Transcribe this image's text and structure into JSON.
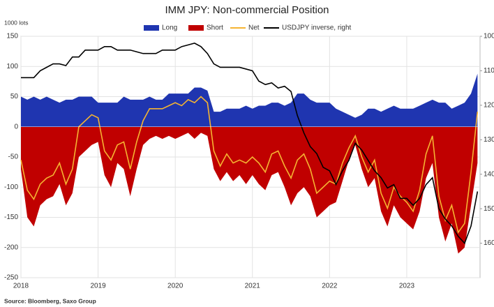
{
  "chart_data": {
    "type": "area",
    "title": "IMM JPY: Non-commercial Position",
    "y_label": "1000 lots",
    "source": "Source: Bloomberg, Saxo Group",
    "x": [
      2018,
      2018.083,
      2018.167,
      2018.25,
      2018.333,
      2018.417,
      2018.5,
      2018.583,
      2018.667,
      2018.75,
      2018.833,
      2018.917,
      2019,
      2019.083,
      2019.167,
      2019.25,
      2019.333,
      2019.417,
      2019.5,
      2019.583,
      2019.667,
      2019.75,
      2019.833,
      2019.917,
      2020,
      2020.083,
      2020.167,
      2020.25,
      2020.333,
      2020.417,
      2020.5,
      2020.583,
      2020.667,
      2020.75,
      2020.833,
      2020.917,
      2021,
      2021.083,
      2021.167,
      2021.25,
      2021.333,
      2021.417,
      2021.5,
      2021.583,
      2021.667,
      2021.75,
      2021.833,
      2021.917,
      2022,
      2022.083,
      2022.167,
      2022.25,
      2022.333,
      2022.417,
      2022.5,
      2022.583,
      2022.667,
      2022.75,
      2022.833,
      2022.917,
      2023,
      2023.083,
      2023.167,
      2023.25,
      2023.333,
      2023.417,
      2023.5,
      2023.583,
      2023.667,
      2023.75,
      2023.833,
      2023.917
    ],
    "xlim": [
      2018,
      2023.95
    ],
    "xticks": [
      2018,
      2019,
      2020,
      2021,
      2022,
      2023
    ],
    "ylim": [
      -250,
      150
    ],
    "yticks": [
      -250,
      -200,
      -150,
      -100,
      -50,
      0,
      50,
      100,
      150
    ],
    "y2lim": [
      100,
      170
    ],
    "y2ticks": [
      100,
      110,
      120,
      130,
      140,
      150,
      160
    ],
    "y2_inverted": true,
    "grid": true,
    "series": [
      {
        "name": "Long",
        "kind": "area",
        "color": "#1f35b0",
        "values": [
          50,
          45,
          50,
          45,
          50,
          45,
          40,
          45,
          45,
          50,
          50,
          50,
          40,
          40,
          40,
          40,
          50,
          45,
          45,
          45,
          50,
          45,
          45,
          55,
          55,
          55,
          55,
          65,
          65,
          60,
          25,
          25,
          30,
          30,
          30,
          35,
          30,
          35,
          35,
          40,
          40,
          35,
          40,
          55,
          55,
          45,
          40,
          40,
          40,
          30,
          25,
          20,
          15,
          20,
          30,
          30,
          25,
          30,
          35,
          30,
          30,
          30,
          35,
          40,
          45,
          40,
          40,
          30,
          35,
          40,
          55,
          88
        ]
      },
      {
        "name": "Short",
        "kind": "area",
        "color": "#c00000",
        "values": [
          -70,
          -150,
          -165,
          -130,
          -120,
          -115,
          -95,
          -130,
          -110,
          -50,
          -40,
          -30,
          -25,
          -80,
          -100,
          -60,
          -70,
          -115,
          -70,
          -30,
          -20,
          -15,
          -20,
          -15,
          -20,
          -15,
          -10,
          -20,
          -10,
          -15,
          -70,
          -90,
          -75,
          -90,
          -80,
          -95,
          -80,
          -95,
          -105,
          -80,
          -75,
          -100,
          -130,
          -110,
          -100,
          -115,
          -150,
          -140,
          -130,
          -125,
          -90,
          -55,
          -30,
          -70,
          -100,
          -85,
          -140,
          -165,
          -130,
          -150,
          -160,
          -170,
          -140,
          -85,
          -60,
          -150,
          -190,
          -160,
          -210,
          -200,
          -130,
          -60
        ]
      },
      {
        "name": "Net",
        "kind": "line",
        "color": "#f5b432",
        "values": [
          -55,
          -105,
          -120,
          -95,
          -85,
          -80,
          -60,
          -95,
          -70,
          0,
          10,
          20,
          15,
          -40,
          -55,
          -30,
          -25,
          -70,
          -25,
          10,
          30,
          30,
          30,
          35,
          40,
          35,
          45,
          40,
          50,
          40,
          -40,
          -65,
          -45,
          -60,
          -55,
          -60,
          -50,
          -60,
          -75,
          -45,
          -40,
          -65,
          -85,
          -55,
          -45,
          -70,
          -110,
          -100,
          -90,
          -95,
          -60,
          -35,
          -15,
          -50,
          -75,
          -55,
          -110,
          -135,
          -100,
          -115,
          -125,
          -140,
          -105,
          -45,
          -15,
          -115,
          -155,
          -130,
          -175,
          -160,
          -75,
          25
        ]
      },
      {
        "name": "USDJPY inverse, right",
        "kind": "line",
        "axis": "y2",
        "color": "#000000",
        "values": [
          112,
          112,
          112,
          110,
          109,
          108,
          108,
          108.5,
          106,
          106,
          104,
          104,
          104,
          103,
          103,
          104,
          104,
          104,
          104.5,
          105,
          105,
          105,
          104,
          104,
          104,
          103,
          102.5,
          102,
          103,
          105,
          108,
          109,
          109,
          109,
          109,
          109.5,
          110,
          113,
          114,
          113.5,
          115,
          114.5,
          116,
          123,
          128,
          132,
          134,
          138,
          139,
          143,
          139,
          136,
          131,
          133,
          136,
          139,
          141,
          144,
          143,
          147,
          147,
          149,
          147,
          143,
          141,
          150,
          153,
          155,
          158,
          160,
          155,
          145
        ]
      }
    ]
  }
}
